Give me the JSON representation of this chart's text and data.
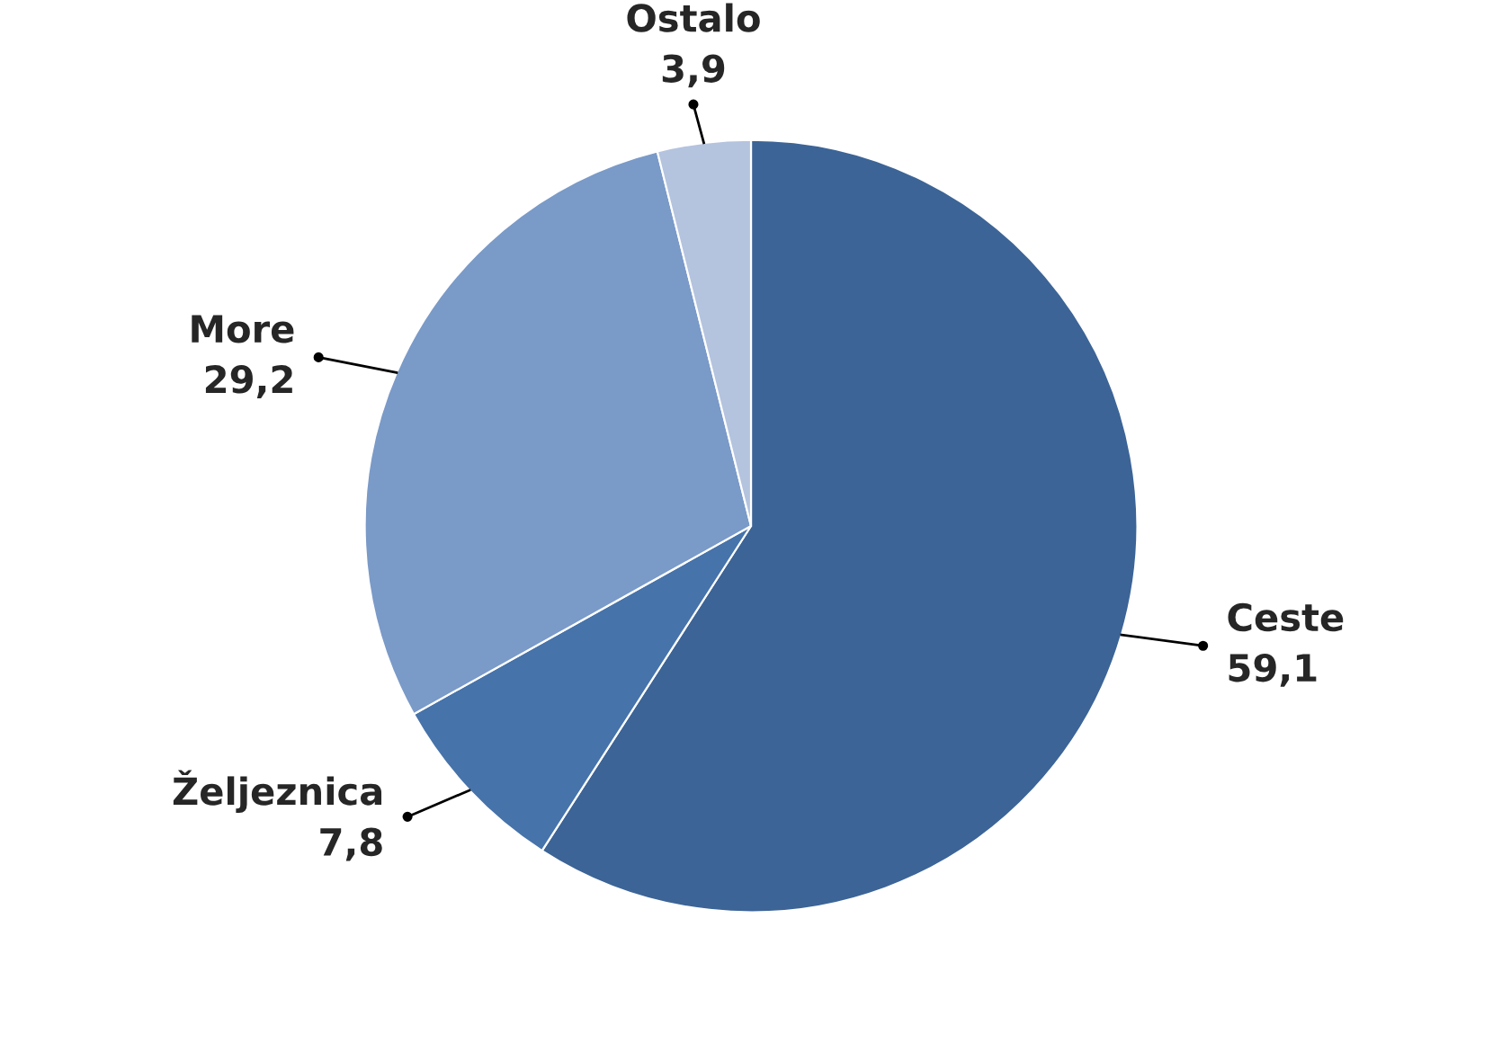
{
  "chart_data": {
    "type": "pie",
    "categories": [
      "Ceste",
      "Željeznica",
      "More",
      "Ostalo"
    ],
    "values": [
      59.1,
      7.8,
      29.2,
      3.9
    ],
    "value_labels": [
      "59,1",
      "7,8",
      "29,2",
      "3,9"
    ],
    "colors": [
      "#3c6496",
      "#4673aa",
      "#7a9ac8",
      "#b4c3de"
    ],
    "legend": false
  }
}
